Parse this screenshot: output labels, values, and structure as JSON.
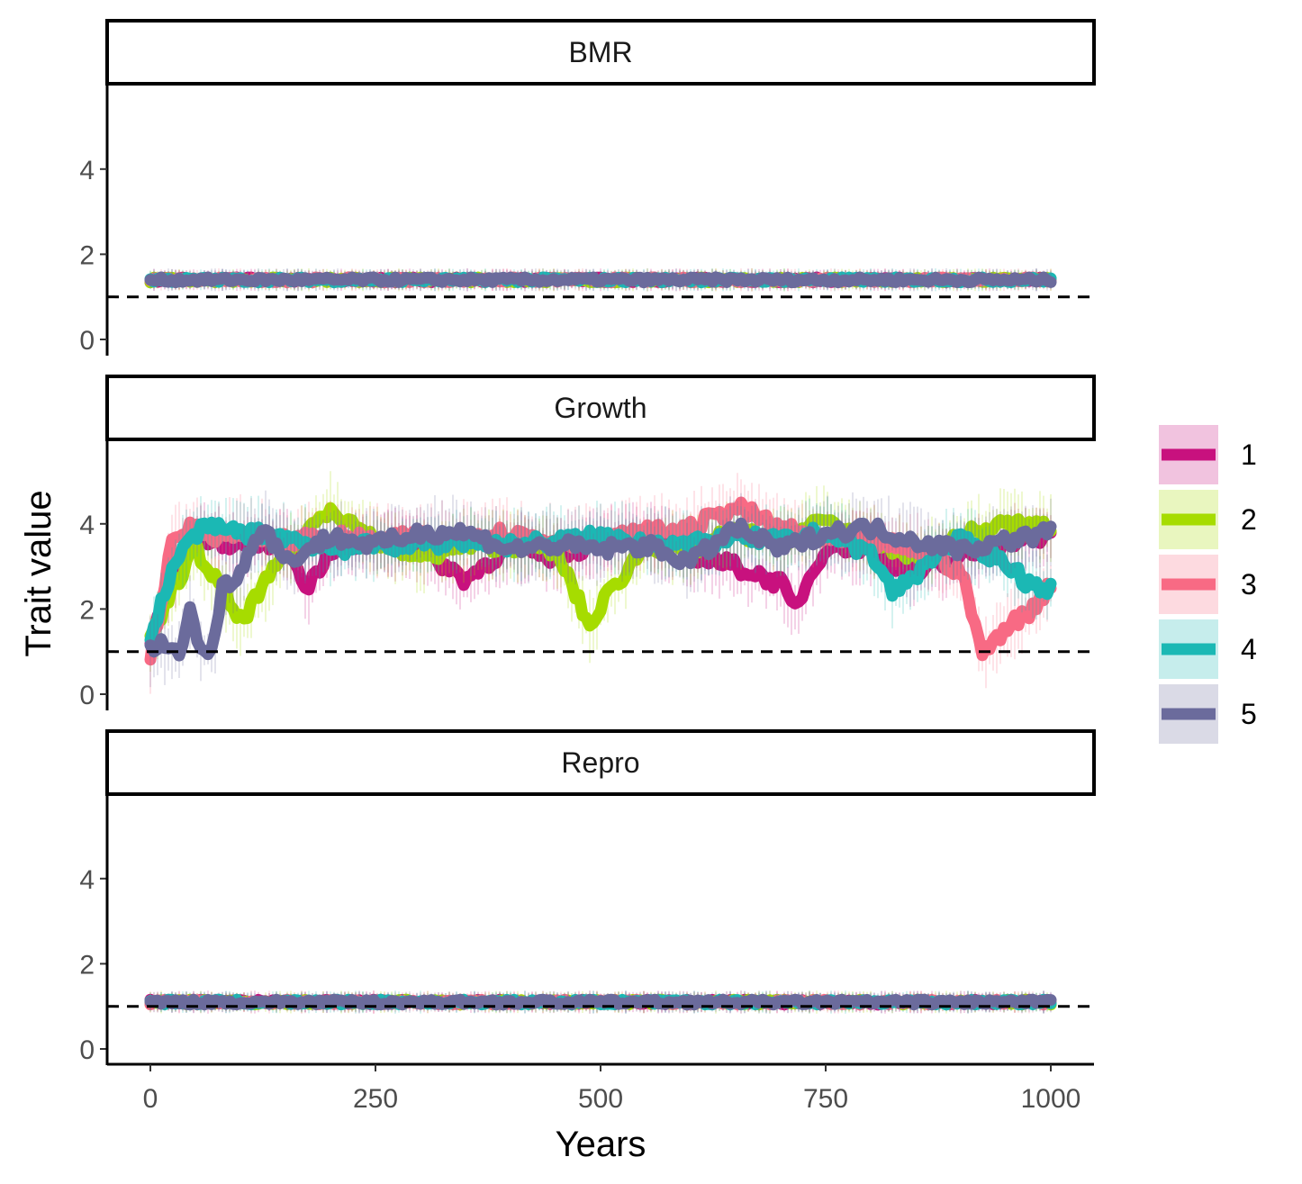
{
  "chart_data": {
    "type": "line",
    "xlabel": "Years",
    "ylabel": "Trait value",
    "xlim": [
      0,
      1000
    ],
    "ylim": [
      0,
      5.5
    ],
    "x_ticks": [
      "0",
      "250",
      "500",
      "750",
      "1000"
    ],
    "y_ticks": [
      "0",
      "2",
      "4"
    ],
    "reference_line": {
      "y": 1,
      "style": "dashed",
      "color": "#000000"
    },
    "legend": {
      "position": "right",
      "entries": [
        "1",
        "2",
        "3",
        "4",
        "5"
      ]
    },
    "colors": {
      "1": "#c8117e",
      "2": "#a6dc00",
      "3": "#f86a84",
      "4": "#1bb8b4",
      "5": "#6b6b9c"
    },
    "panels": [
      {
        "label": "BMR",
        "series": [
          {
            "name": "1",
            "x": [
              0,
              100,
              200,
              300,
              400,
              500,
              600,
              700,
              800,
              900,
              1000
            ],
            "y": [
              1.4,
              1.4,
              1.4,
              1.4,
              1.4,
              1.4,
              1.4,
              1.4,
              1.4,
              1.4,
              1.4
            ]
          },
          {
            "name": "2",
            "x": [
              0,
              100,
              200,
              300,
              400,
              500,
              600,
              700,
              800,
              900,
              1000
            ],
            "y": [
              1.4,
              1.4,
              1.4,
              1.4,
              1.4,
              1.4,
              1.4,
              1.4,
              1.4,
              1.4,
              1.4
            ]
          },
          {
            "name": "3",
            "x": [
              0,
              100,
              200,
              300,
              400,
              500,
              600,
              700,
              800,
              900,
              1000
            ],
            "y": [
              1.4,
              1.4,
              1.4,
              1.4,
              1.4,
              1.4,
              1.4,
              1.4,
              1.4,
              1.4,
              1.4
            ]
          },
          {
            "name": "4",
            "x": [
              0,
              100,
              200,
              300,
              400,
              500,
              600,
              700,
              800,
              900,
              1000
            ],
            "y": [
              1.4,
              1.4,
              1.4,
              1.4,
              1.4,
              1.4,
              1.4,
              1.4,
              1.4,
              1.4,
              1.4
            ]
          },
          {
            "name": "5",
            "x": [
              0,
              100,
              200,
              300,
              400,
              500,
              600,
              700,
              800,
              900,
              1000
            ],
            "y": [
              1.4,
              1.4,
              1.4,
              1.4,
              1.4,
              1.4,
              1.4,
              1.4,
              1.4,
              1.4,
              1.4
            ]
          }
        ]
      },
      {
        "label": "Growth",
        "series": [
          {
            "name": "1",
            "x": [
              0,
              25,
              50,
              100,
              150,
              175,
              200,
              250,
              300,
              350,
              400,
              450,
              500,
              550,
              600,
              650,
              700,
              715,
              750,
              800,
              850,
              900,
              950,
              1000
            ],
            "y": [
              1.2,
              2.8,
              3.7,
              3.5,
              3.6,
              2.5,
              3.4,
              3.6,
              3.4,
              2.7,
              3.5,
              3.2,
              3.6,
              3.7,
              3.3,
              3.0,
              2.6,
              2.0,
              3.5,
              3.4,
              2.8,
              3.2,
              3.6,
              3.7
            ]
          },
          {
            "name": "2",
            "x": [
              0,
              25,
              50,
              75,
              100,
              150,
              200,
              250,
              300,
              350,
              400,
              450,
              490,
              500,
              550,
              600,
              650,
              700,
              750,
              800,
              850,
              900,
              950,
              1000
            ],
            "y": [
              1.2,
              2.5,
              3.4,
              2.6,
              1.7,
              3.3,
              4.4,
              3.6,
              3.2,
              3.5,
              3.5,
              3.4,
              1.5,
              2.1,
              3.5,
              3.4,
              3.8,
              3.6,
              4.1,
              3.6,
              3.2,
              3.7,
              4.0,
              3.9
            ]
          },
          {
            "name": "3",
            "x": [
              0,
              25,
              50,
              75,
              100,
              150,
              200,
              250,
              300,
              350,
              400,
              450,
              500,
              550,
              600,
              650,
              700,
              750,
              800,
              850,
              900,
              925,
              950,
              975,
              1000
            ],
            "y": [
              0.9,
              3.6,
              4.0,
              3.7,
              3.8,
              3.6,
              3.7,
              3.6,
              3.7,
              3.7,
              3.8,
              3.6,
              3.6,
              3.8,
              3.9,
              4.4,
              3.9,
              3.6,
              3.6,
              3.4,
              2.9,
              0.9,
              1.6,
              1.9,
              2.6
            ]
          },
          {
            "name": "4",
            "x": [
              0,
              25,
              50,
              75,
              100,
              150,
              200,
              250,
              300,
              350,
              400,
              450,
              500,
              550,
              600,
              650,
              700,
              750,
              800,
              825,
              850,
              875,
              900,
              950,
              975,
              1000
            ],
            "y": [
              1.3,
              3.0,
              3.8,
              3.9,
              3.8,
              3.7,
              3.4,
              3.5,
              3.5,
              3.6,
              3.5,
              3.6,
              3.7,
              3.6,
              3.5,
              3.7,
              3.6,
              3.8,
              3.3,
              2.4,
              2.8,
              3.4,
              3.6,
              3.1,
              2.6,
              2.5
            ]
          },
          {
            "name": "5",
            "x": [
              0,
              10,
              30,
              45,
              55,
              70,
              80,
              100,
              125,
              150,
              200,
              250,
              300,
              350,
              400,
              450,
              500,
              550,
              600,
              650,
              700,
              750,
              800,
              850,
              900,
              950,
              1000
            ],
            "y": [
              1.0,
              1.2,
              0.9,
              2.0,
              1.0,
              1.1,
              2.5,
              2.9,
              4.0,
              3.1,
              3.7,
              3.5,
              3.8,
              3.8,
              3.4,
              3.5,
              3.4,
              3.5,
              3.1,
              3.9,
              3.4,
              3.8,
              3.9,
              3.6,
              3.4,
              3.6,
              3.8
            ]
          }
        ]
      },
      {
        "label": "Repro",
        "series": [
          {
            "name": "1",
            "x": [
              0,
              100,
              200,
              300,
              400,
              500,
              600,
              700,
              800,
              900,
              1000
            ],
            "y": [
              1.1,
              1.1,
              1.1,
              1.1,
              1.1,
              1.1,
              1.1,
              1.1,
              1.1,
              1.1,
              1.1
            ]
          },
          {
            "name": "2",
            "x": [
              0,
              100,
              200,
              300,
              400,
              500,
              600,
              700,
              800,
              900,
              1000
            ],
            "y": [
              1.1,
              1.1,
              1.1,
              1.1,
              1.1,
              1.1,
              1.1,
              1.1,
              1.1,
              1.1,
              1.1
            ]
          },
          {
            "name": "3",
            "x": [
              0,
              100,
              200,
              300,
              400,
              500,
              600,
              700,
              800,
              900,
              1000
            ],
            "y": [
              1.1,
              1.1,
              1.1,
              1.1,
              1.1,
              1.1,
              1.1,
              1.1,
              1.1,
              1.1,
              1.1
            ]
          },
          {
            "name": "4",
            "x": [
              0,
              100,
              200,
              300,
              400,
              500,
              600,
              700,
              800,
              900,
              1000
            ],
            "y": [
              1.1,
              1.1,
              1.1,
              1.1,
              1.1,
              1.1,
              1.1,
              1.1,
              1.1,
              1.1,
              1.1
            ]
          },
          {
            "name": "5",
            "x": [
              0,
              100,
              200,
              300,
              400,
              500,
              600,
              700,
              800,
              900,
              1000
            ],
            "y": [
              1.1,
              1.1,
              1.1,
              1.1,
              1.1,
              1.1,
              1.1,
              1.1,
              1.1,
              1.1,
              1.1
            ]
          }
        ]
      }
    ]
  }
}
